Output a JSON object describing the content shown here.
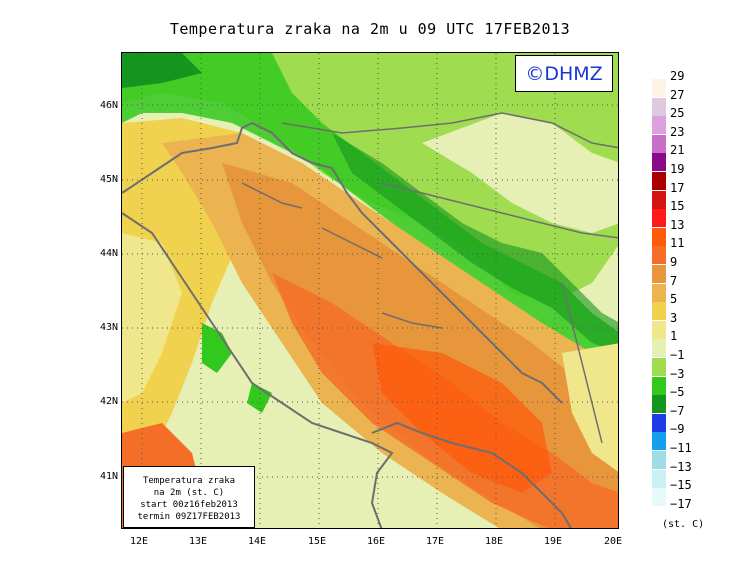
{
  "title": "Temperatura zraka na 2m u 09 UTC 17FEB2013",
  "logo_text": "©DHMZ",
  "info_box": {
    "line1": "Temperatura zraka",
    "line2": "na 2m (st. C)",
    "line3": "start 00z16feb2013",
    "line4": "termin 09Z17FEB2013"
  },
  "lat_labels": [
    "46N",
    "45N",
    "44N",
    "43N",
    "42N",
    "41N"
  ],
  "lon_labels": [
    "12E",
    "13E",
    "14E",
    "15E",
    "16E",
    "17E",
    "18E",
    "19E",
    "20E"
  ],
  "legend": {
    "labels": [
      "29",
      "27",
      "25",
      "23",
      "21",
      "19",
      "17",
      "15",
      "13",
      "11",
      "9",
      "7",
      "5",
      "3",
      "1",
      "−1",
      "−3",
      "−5",
      "−7",
      "−9",
      "−11",
      "−13",
      "−15",
      "−17"
    ],
    "colors": [
      "#fff2e6",
      "#e0c8e0",
      "#dca0dc",
      "#c870c8",
      "#8a0a8a",
      "#aa0000",
      "#d21414",
      "#ff1a1a",
      "#ff5a0a",
      "#f56e28",
      "#e8963c",
      "#ecb450",
      "#f0d24e",
      "#f0e68c",
      "#e6f0b4",
      "#a0dc50",
      "#32c81e",
      "#14961e",
      "#1e3ce6",
      "#14a0ee",
      "#a0dce6",
      "#c8f0f5",
      "#e6fafa"
    ],
    "unit": "(st. C)"
  },
  "colors": {
    "coast": "#6e6e6e",
    "grid": "#555555"
  }
}
